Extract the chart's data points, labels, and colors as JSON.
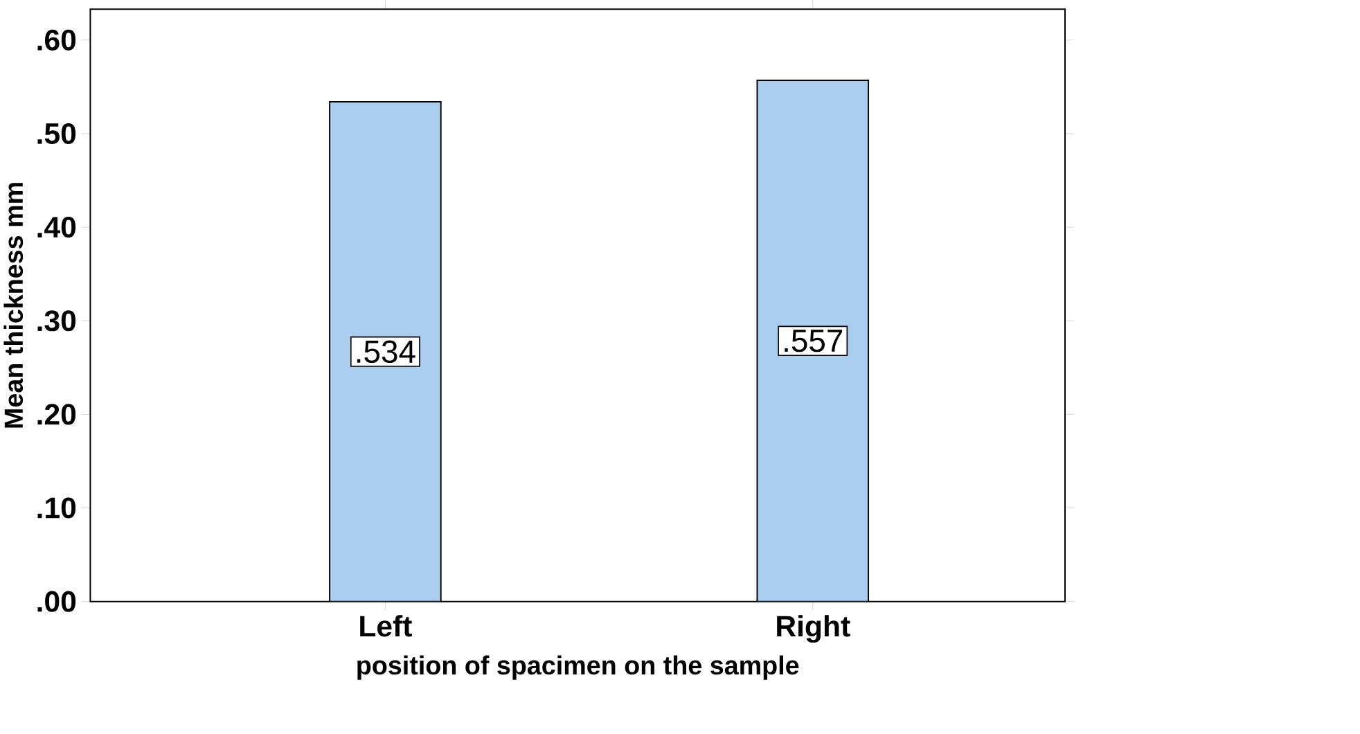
{
  "chart_data": {
    "type": "bar",
    "xlabel": "position of spacimen on the sample",
    "ylabel": "Mean thickness mm",
    "categories": [
      "Left",
      "Right"
    ],
    "values": [
      0.534,
      0.557
    ],
    "value_labels": [
      ".534",
      ".557"
    ],
    "color": "#abcdee",
    "ylim": [
      0,
      0.633
    ],
    "yticks": [
      {
        "value": 0,
        "label": ".00"
      },
      {
        "value": 0.1,
        "label": ".10"
      },
      {
        "value": 0.2,
        "label": ".20"
      },
      {
        "value": 0.3,
        "label": ".30"
      },
      {
        "value": 0.4,
        "label": ".40"
      },
      {
        "value": 0.5,
        "label": ".50"
      },
      {
        "value": 0.6,
        "label": ".60"
      }
    ],
    "grid": false
  }
}
